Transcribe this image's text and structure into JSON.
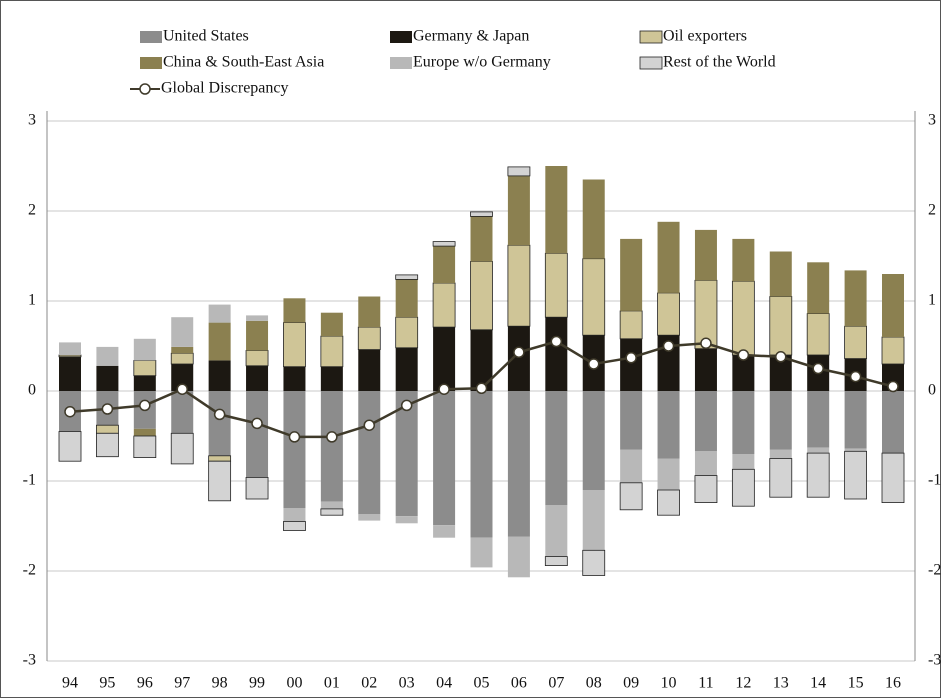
{
  "chart_data": {
    "type": "bar",
    "categories": [
      "94",
      "95",
      "96",
      "97",
      "98",
      "99",
      "00",
      "01",
      "02",
      "03",
      "04",
      "05",
      "06",
      "07",
      "08",
      "09",
      "10",
      "11",
      "12",
      "13",
      "14",
      "15",
      "16"
    ],
    "series": [
      {
        "name": "United States",
        "color": "#8c8c8c",
        "outline": false,
        "values": [
          -0.45,
          -0.38,
          -0.42,
          -0.47,
          -0.72,
          -0.96,
          -1.3,
          -1.23,
          -1.37,
          -1.39,
          -1.49,
          -1.63,
          -1.62,
          -1.27,
          -1.1,
          -0.65,
          -0.75,
          -0.67,
          -0.7,
          -0.65,
          -0.63,
          -0.64,
          -0.69
        ]
      },
      {
        "name": "Germany & Japan",
        "color": "#1c1812",
        "outline": false,
        "values": [
          0.38,
          0.28,
          0.17,
          0.3,
          0.34,
          0.28,
          0.27,
          0.27,
          0.46,
          0.48,
          0.71,
          0.68,
          0.72,
          0.82,
          0.62,
          0.58,
          0.62,
          0.47,
          0.4,
          0.4,
          0.4,
          0.36,
          0.3
        ]
      },
      {
        "name": "Oil exporters",
        "color": "#cfc597",
        "outline": true,
        "values": [
          0.02,
          -0.09,
          0.17,
          0.12,
          -0.06,
          0.17,
          0.49,
          0.34,
          0.25,
          0.34,
          0.49,
          0.76,
          0.9,
          0.71,
          0.85,
          0.31,
          0.47,
          0.76,
          0.82,
          0.65,
          0.46,
          0.36,
          0.3
        ]
      },
      {
        "name": "China & South-East Asia",
        "color": "#8b8050",
        "outline": false,
        "values": [
          0,
          0,
          -0.08,
          0.07,
          0.42,
          0.33,
          0.27,
          0.26,
          0.34,
          0.42,
          0.41,
          0.5,
          0.77,
          0.97,
          0.88,
          0.8,
          0.79,
          0.56,
          0.47,
          0.5,
          0.57,
          0.62,
          0.7
        ]
      },
      {
        "name": "Europe w/o Germany",
        "color": "#b8b8b8",
        "outline": false,
        "values": [
          0.14,
          0.21,
          0.24,
          0.33,
          0.2,
          0.06,
          -0.15,
          -0.08,
          -0.07,
          -0.08,
          -0.14,
          -0.33,
          -0.45,
          -0.57,
          -0.67,
          -0.37,
          -0.35,
          -0.27,
          -0.17,
          -0.1,
          -0.06,
          -0.03,
          0
        ]
      },
      {
        "name": "Rest of the World",
        "color": "#d3d3d3",
        "outline": true,
        "values": [
          -0.33,
          -0.26,
          -0.24,
          -0.34,
          -0.44,
          -0.24,
          -0.1,
          -0.07,
          0,
          0.05,
          0.05,
          0.05,
          0.1,
          -0.1,
          -0.28,
          -0.3,
          -0.28,
          -0.3,
          -0.41,
          -0.43,
          -0.49,
          -0.53,
          -0.55
        ]
      },
      {
        "name": "Global Discrepancy",
        "type": "line",
        "color": "#3f3a2a",
        "values": [
          -0.23,
          -0.2,
          -0.16,
          0.02,
          -0.26,
          -0.36,
          -0.51,
          -0.51,
          -0.38,
          -0.16,
          0.02,
          0.03,
          0.43,
          0.55,
          0.3,
          0.37,
          0.5,
          0.53,
          0.4,
          0.38,
          0.25,
          0.16,
          0.05
        ]
      }
    ],
    "ylim": [
      -3,
      3
    ],
    "yticks": [
      -3,
      -2,
      -1,
      0,
      1,
      2,
      3
    ],
    "grid": true
  }
}
